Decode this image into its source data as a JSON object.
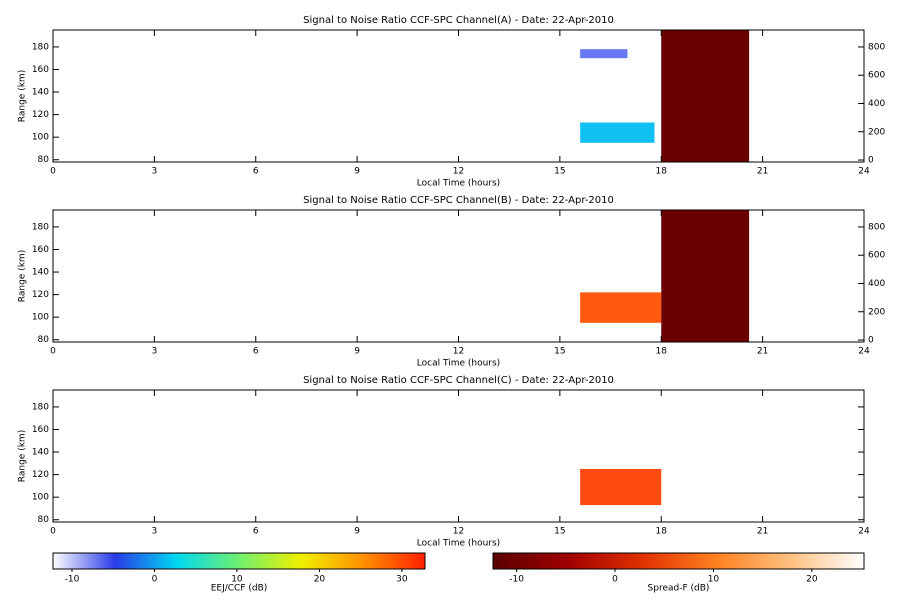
{
  "chart_data": [
    {
      "type": "heatmap",
      "title": "Signal to Noise Ratio CCF-SPC Channel(A) - Date: 22-Apr-2010",
      "xlabel": "Local Time (hours)",
      "ylabel": "Range (km)",
      "xlim": [
        0,
        24
      ],
      "xticks": [
        0,
        3,
        6,
        9,
        12,
        15,
        18,
        21,
        24
      ],
      "ylim": [
        78,
        195
      ],
      "yticks": [
        80,
        100,
        120,
        140,
        160,
        180
      ],
      "y2lim": [
        -14,
        920
      ],
      "y2ticks": [
        0,
        200,
        400,
        600,
        800
      ],
      "echoes": [
        {
          "x": [
            15.6,
            17.8
          ],
          "y": [
            95,
            113
          ],
          "color": "#10c0f0"
        },
        {
          "x": [
            15.6,
            17.0
          ],
          "y": [
            170,
            178
          ],
          "color": "#6878f0"
        },
        {
          "x": [
            18,
            20.6
          ],
          "y": [
            78,
            195
          ],
          "color": "#6a0000"
        }
      ]
    },
    {
      "type": "heatmap",
      "title": "Signal to Noise Ratio CCF-SPC Channel(B) - Date: 22-Apr-2010",
      "xlabel": "Local Time (hours)",
      "ylabel": "Range (km)",
      "xlim": [
        0,
        24
      ],
      "xticks": [
        0,
        3,
        6,
        9,
        12,
        15,
        18,
        21,
        24
      ],
      "ylim": [
        78,
        195
      ],
      "yticks": [
        80,
        100,
        120,
        140,
        160,
        180
      ],
      "y2lim": [
        -14,
        920
      ],
      "y2ticks": [
        0,
        200,
        400,
        600,
        800
      ],
      "echoes": [
        {
          "x": [
            15.6,
            18
          ],
          "y": [
            95,
            122
          ],
          "color": "#ff5a10"
        },
        {
          "x": [
            18,
            20.6
          ],
          "y": [
            78,
            195
          ],
          "color": "#6a0000"
        }
      ]
    },
    {
      "type": "heatmap",
      "title": "Signal to Noise Ratio CCF-SPC Channel(C) - Date: 22-Apr-2010",
      "xlabel": "Local Time (hours)",
      "ylabel": "Range (km)",
      "xlim": [
        0,
        24
      ],
      "xticks": [
        0,
        3,
        6,
        9,
        12,
        15,
        18,
        21,
        24
      ],
      "ylim": [
        78,
        195
      ],
      "yticks": [
        80,
        100,
        120,
        140,
        160,
        180
      ],
      "echoes": [
        {
          "x": [
            15.6,
            18
          ],
          "y": [
            93,
            125
          ],
          "color": "#ff4a10"
        }
      ]
    },
    {
      "type": "colorbar",
      "xlabel": "EEJ/CCF (dB)",
      "xlim": [
        -12.3,
        32.8
      ],
      "xticks": [
        -10,
        0,
        10,
        20,
        30
      ],
      "colors": [
        "#ffffff",
        "#2a3ce8",
        "#00d8f0",
        "#70f070",
        "#f0f000",
        "#ff9000",
        "#ff2000"
      ]
    },
    {
      "type": "colorbar",
      "xlabel": "Spread-F (dB)",
      "xlim": [
        -12.4,
        25.3
      ],
      "xticks": [
        -10,
        0,
        10,
        20
      ],
      "colors": [
        "#5a0000",
        "#a00000",
        "#e03000",
        "#ff8020",
        "#ffc080",
        "#ffffff"
      ]
    }
  ]
}
